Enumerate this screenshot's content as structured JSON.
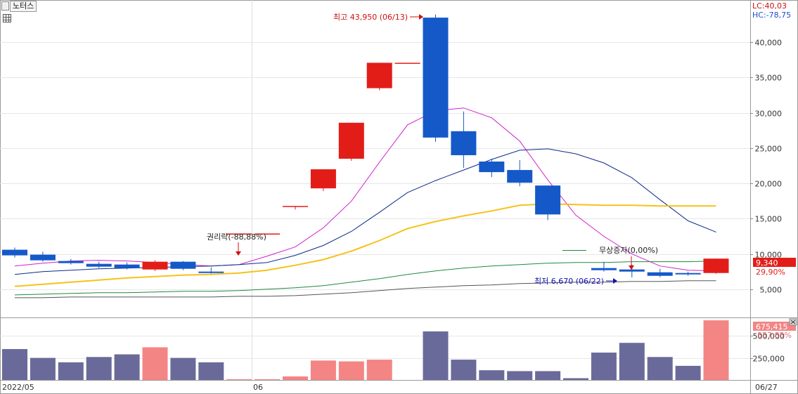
{
  "stock_name": "노터스",
  "icons": {
    "menu": "menu-square-icon",
    "grid": "grid-table-icon",
    "close": "close-icon"
  },
  "colors": {
    "up": "#e21d18",
    "down": "#1559c9",
    "vol_up": "#f48585",
    "vol_down": "#6a6a9a",
    "ma_pink": "#d21fd0",
    "ma_navy": "#0d2a8c",
    "ma_yellow": "#f6c21a",
    "ma_green": "#1f8a3a",
    "ma_gray": "#555555"
  },
  "top_right": {
    "lc": "LC:40,03",
    "hc": "HC:-78,75"
  },
  "annotations": {
    "high": "최고 43,950 (06/13)",
    "low": "최저 6,670 (06/22)",
    "rights": "권리락(-88,88%)",
    "bonus": "무상증자(0,00%)"
  },
  "badges": {
    "price": "9,340",
    "price_pct": "29,90%",
    "volume": "675,415",
    "volume_pct": "557,85%"
  },
  "x_axis": {
    "left": "2022/05",
    "mid": "06",
    "right": "06/27"
  },
  "chart_data": [
    {
      "type": "candlestick",
      "y_ticks": [
        5000,
        10000,
        15000,
        20000,
        25000,
        30000,
        35000,
        40000
      ],
      "y_tick_labels": [
        "5,000",
        "10,000",
        "15,000",
        "20,000",
        "25,000",
        "30,000",
        "35,000",
        "40,000"
      ],
      "ylim": [
        1000,
        46000
      ],
      "candles": [
        {
          "o": 10600,
          "c": 9800,
          "h": 10900,
          "l": 9500
        },
        {
          "o": 9900,
          "c": 9100,
          "h": 10300,
          "l": 8900
        },
        {
          "o": 9000,
          "c": 8700,
          "h": 9300,
          "l": 8500
        },
        {
          "o": 8600,
          "c": 8200,
          "h": 8900,
          "l": 8000
        },
        {
          "o": 8500,
          "c": 8000,
          "h": 8800,
          "l": 7800
        },
        {
          "o": 7800,
          "c": 8900,
          "h": 9100,
          "l": 7600
        },
        {
          "o": 8900,
          "c": 7900,
          "h": 9000,
          "l": 7700
        },
        {
          "o": 7500,
          "c": 7300,
          "h": 8100,
          "l": 7200
        },
        {
          "o": 12900,
          "c": 12900,
          "h": 12900,
          "l": 12900
        },
        {
          "o": 12900,
          "c": 12900,
          "h": 12900,
          "l": 12900
        },
        {
          "o": 16800,
          "c": 16800,
          "h": 16800,
          "l": 16300
        },
        {
          "o": 19300,
          "c": 22000,
          "h": 22000,
          "l": 18900
        },
        {
          "o": 23500,
          "c": 28600,
          "h": 28600,
          "l": 23200
        },
        {
          "o": 33500,
          "c": 37100,
          "h": 37100,
          "l": 33200
        },
        {
          "o": 37100,
          "c": 37100,
          "h": 37100,
          "l": 37100
        },
        {
          "o": 43500,
          "c": 26500,
          "h": 43950,
          "l": 25900
        },
        {
          "o": 27400,
          "c": 24000,
          "h": 30200,
          "l": 22200
        },
        {
          "o": 23100,
          "c": 21600,
          "h": 23500,
          "l": 20900
        },
        {
          "o": 21900,
          "c": 20100,
          "h": 23300,
          "l": 19600
        },
        {
          "o": 19700,
          "c": 15600,
          "h": 19700,
          "l": 14800
        },
        {
          "o": null,
          "c": null,
          "h": null,
          "l": null
        },
        {
          "o": 8000,
          "c": 7700,
          "h": 8900,
          "l": 7500
        },
        {
          "o": 7800,
          "c": 7500,
          "h": 8500,
          "l": 6670
        },
        {
          "o": 7400,
          "c": 6900,
          "h": 7900,
          "l": 6700
        },
        {
          "o": 7300,
          "c": 7100,
          "h": 7500,
          "l": 6900
        },
        {
          "o": 7300,
          "c": 9340,
          "h": 9340,
          "l": 7200
        }
      ],
      "moving_averages": [
        {
          "color": "#d21fd0",
          "values": [
            8300,
            8700,
            9000,
            9100,
            9000,
            8800,
            8500,
            8300,
            8500,
            9700,
            11000,
            13700,
            17500,
            23000,
            28300,
            30300,
            30700,
            29300,
            26000,
            20500,
            15500,
            12500,
            10000,
            8300,
            7700,
            7600
          ]
        },
        {
          "color": "#0d2a8c",
          "values": [
            7100,
            7500,
            7700,
            7900,
            8000,
            8100,
            8200,
            8300,
            8500,
            8800,
            9800,
            11200,
            13200,
            15900,
            18700,
            20400,
            21900,
            23400,
            24700,
            24900,
            24200,
            22900,
            20800,
            17700,
            14700,
            13100
          ]
        },
        {
          "color": "#f6c21a",
          "values": [
            5400,
            5700,
            6000,
            6300,
            6600,
            6800,
            7000,
            7100,
            7300,
            7700,
            8400,
            9200,
            10400,
            11900,
            13600,
            14600,
            15400,
            16100,
            16900,
            17100,
            17000,
            16900,
            16900,
            16800,
            16800,
            16800
          ]
        },
        {
          "color": "#1f8a3a",
          "values": [
            4200,
            4300,
            4400,
            4500,
            4500,
            4600,
            4700,
            4700,
            4800,
            5000,
            5200,
            5500,
            6000,
            6500,
            7100,
            7600,
            8000,
            8300,
            8500,
            8700,
            8800,
            8800,
            8900,
            8900,
            8900,
            9000
          ]
        },
        {
          "color": "#555555",
          "values": [
            3800,
            3800,
            3900,
            3900,
            3900,
            3900,
            3900,
            3900,
            4000,
            4000,
            4100,
            4300,
            4500,
            4800,
            5100,
            5300,
            5500,
            5600,
            5800,
            5900,
            6000,
            6000,
            6100,
            6100,
            6200,
            6200
          ]
        }
      ]
    },
    {
      "type": "bar",
      "y_ticks": [
        250000,
        500000
      ],
      "y_tick_labels": [
        "250,000",
        "500,000"
      ],
      "ylim": [
        0,
        700000
      ],
      "values": [
        350000,
        250000,
        200000,
        260000,
        290000,
        370000,
        250000,
        200000,
        8000,
        8000,
        40000,
        220000,
        210000,
        230000,
        0,
        550000,
        230000,
        110000,
        100000,
        100000,
        20000,
        310000,
        420000,
        260000,
        160000,
        675415
      ],
      "up": [
        false,
        false,
        false,
        false,
        false,
        true,
        false,
        false,
        true,
        true,
        true,
        true,
        true,
        true,
        true,
        false,
        false,
        false,
        false,
        false,
        false,
        false,
        false,
        false,
        false,
        true
      ]
    }
  ]
}
